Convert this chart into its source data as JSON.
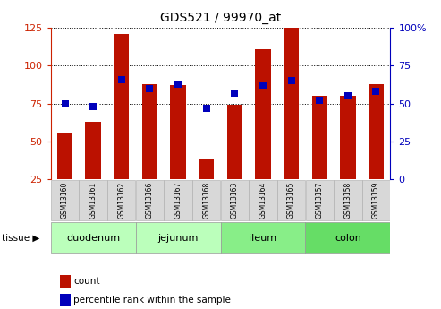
{
  "title": "GDS521 / 99970_at",
  "samples": [
    "GSM13160",
    "GSM13161",
    "GSM13162",
    "GSM13166",
    "GSM13167",
    "GSM13168",
    "GSM13163",
    "GSM13164",
    "GSM13165",
    "GSM13157",
    "GSM13158",
    "GSM13159"
  ],
  "counts": [
    55,
    63,
    121,
    88,
    87,
    38,
    74,
    111,
    126,
    80,
    80,
    88
  ],
  "percentiles": [
    50,
    48,
    66,
    60,
    63,
    47,
    57,
    62,
    65,
    52,
    55,
    58
  ],
  "tissues": [
    {
      "label": "duodenum",
      "indices": [
        0,
        1,
        2
      ],
      "color": "#bbffbb"
    },
    {
      "label": "jejunum",
      "indices": [
        3,
        4,
        5
      ],
      "color": "#bbffbb"
    },
    {
      "label": "ileum",
      "indices": [
        6,
        7,
        8
      ],
      "color": "#88ee88"
    },
    {
      "label": "colon",
      "indices": [
        9,
        10,
        11
      ],
      "color": "#66dd66"
    }
  ],
  "bar_color": "#bb1100",
  "dot_color": "#0000bb",
  "left_ylim": [
    25,
    125
  ],
  "left_yticks": [
    25,
    50,
    75,
    100,
    125
  ],
  "right_ylim": [
    0,
    100
  ],
  "right_yticks": [
    0,
    25,
    50,
    75,
    100
  ],
  "right_yticklabels": [
    "0",
    "25",
    "50",
    "75",
    "100%"
  ],
  "bg_color": "#ffffff",
  "bar_color_legend": "#cc2200",
  "dot_color_legend": "#0000cc",
  "tick_color_left": "#cc2200",
  "tick_color_right": "#0000bb",
  "tissue_label": "tissue",
  "legend_count_label": "count",
  "legend_pct_label": "percentile rank within the sample",
  "bar_width": 0.55,
  "dot_size": 28,
  "sample_box_color": "#d8d8d8"
}
